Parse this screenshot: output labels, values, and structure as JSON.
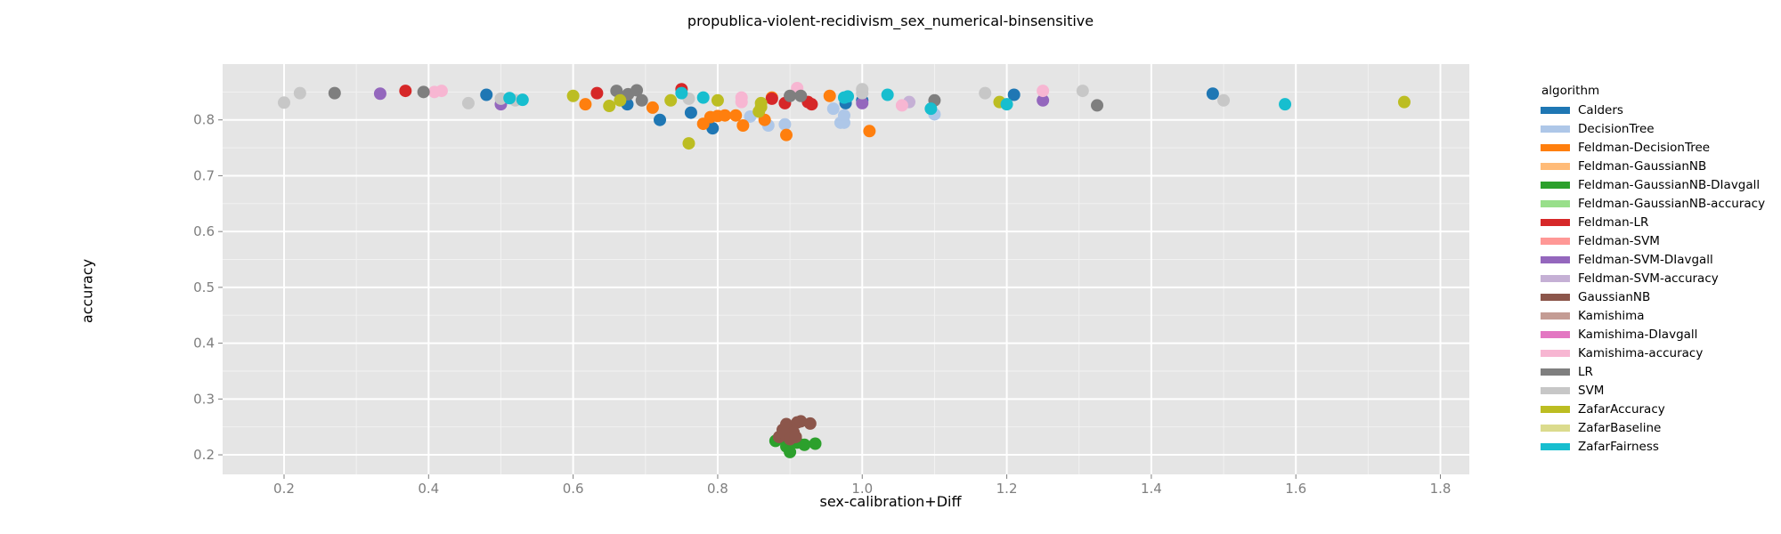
{
  "chart_data": {
    "type": "scatter",
    "title": "propublica-violent-recidivism_sex_numerical-binsensitive",
    "xlabel": "sex-calibration+Diff",
    "ylabel": "accuracy",
    "xlim": [
      0.115,
      1.84
    ],
    "ylim": [
      0.165,
      0.9
    ],
    "xticks": [
      0.2,
      0.4,
      0.6,
      0.8,
      1.0,
      1.2,
      1.4,
      1.6,
      1.8
    ],
    "xtick_labels": [
      "0.2",
      "0.4",
      "0.6",
      "0.8",
      "1.0",
      "1.2",
      "1.4",
      "1.6",
      "1.8"
    ],
    "yticks": [
      0.2,
      0.3,
      0.4,
      0.5,
      0.6,
      0.7,
      0.8
    ],
    "ytick_labels": [
      "0.2",
      "0.3",
      "0.4",
      "0.5",
      "0.6",
      "0.7",
      "0.8"
    ],
    "grid": true,
    "legend_title": "algorithm",
    "legend_position": "right",
    "series": [
      {
        "name": "Calders",
        "color": "#1f77b4",
        "points": [
          [
            0.48,
            0.845
          ],
          [
            0.72,
            0.8
          ],
          [
            0.763,
            0.813
          ],
          [
            0.793,
            0.785
          ],
          [
            0.977,
            0.83
          ],
          [
            1.0,
            0.835
          ],
          [
            1.21,
            0.845
          ],
          [
            1.485,
            0.847
          ],
          [
            0.675,
            0.828
          ]
        ]
      },
      {
        "name": "DecisionTree",
        "color": "#aec7e8",
        "points": [
          [
            0.845,
            0.806
          ],
          [
            0.87,
            0.79
          ],
          [
            0.893,
            0.792
          ],
          [
            0.96,
            0.82
          ],
          [
            0.97,
            0.795
          ],
          [
            0.975,
            0.795
          ],
          [
            1.1,
            0.81
          ],
          [
            0.975,
            0.808
          ]
        ]
      },
      {
        "name": "Feldman-DecisionTree",
        "color": "#ff7f0e",
        "points": [
          [
            0.617,
            0.828
          ],
          [
            0.71,
            0.822
          ],
          [
            0.78,
            0.793
          ],
          [
            0.79,
            0.805
          ],
          [
            0.8,
            0.807
          ],
          [
            0.81,
            0.808
          ],
          [
            0.825,
            0.808
          ],
          [
            0.835,
            0.79
          ],
          [
            0.865,
            0.8
          ],
          [
            0.895,
            0.773
          ],
          [
            1.01,
            0.78
          ],
          [
            0.955,
            0.843
          ],
          [
            0.875,
            0.84
          ]
        ]
      },
      {
        "name": "Feldman-GaussianNB",
        "color": "#ffbb78",
        "points": []
      },
      {
        "name": "Feldman-GaussianNB-DIavgall",
        "color": "#2ca02c",
        "points": [
          [
            0.88,
            0.225
          ],
          [
            0.895,
            0.215
          ],
          [
            0.9,
            0.205
          ],
          [
            0.91,
            0.222
          ],
          [
            0.92,
            0.218
          ],
          [
            0.935,
            0.22
          ],
          [
            0.89,
            0.23
          ]
        ]
      },
      {
        "name": "Feldman-GaussianNB-accuracy",
        "color": "#98df8a",
        "points": []
      },
      {
        "name": "Feldman-LR",
        "color": "#d62728",
        "points": [
          [
            0.368,
            0.852
          ],
          [
            0.633,
            0.848
          ],
          [
            0.75,
            0.855
          ],
          [
            0.875,
            0.838
          ],
          [
            0.893,
            0.83
          ],
          [
            0.925,
            0.832
          ],
          [
            0.93,
            0.828
          ]
        ]
      },
      {
        "name": "Feldman-SVM",
        "color": "#ff9896",
        "points": []
      },
      {
        "name": "Feldman-SVM-DIavgall",
        "color": "#9467bd",
        "points": [
          [
            0.333,
            0.847
          ],
          [
            0.5,
            0.828
          ],
          [
            1.0,
            0.83
          ],
          [
            1.25,
            0.835
          ]
        ]
      },
      {
        "name": "Feldman-SVM-accuracy",
        "color": "#c5b0d5",
        "points": [
          [
            1.065,
            0.832
          ]
        ]
      },
      {
        "name": "GaussianNB",
        "color": "#8c564b",
        "points": [
          [
            0.885,
            0.232
          ],
          [
            0.89,
            0.245
          ],
          [
            0.895,
            0.255
          ],
          [
            0.9,
            0.248
          ],
          [
            0.905,
            0.24
          ],
          [
            0.91,
            0.258
          ],
          [
            0.915,
            0.26
          ],
          [
            0.928,
            0.256
          ],
          [
            0.893,
            0.238
          ],
          [
            0.9,
            0.228
          ],
          [
            0.908,
            0.232
          ]
        ]
      },
      {
        "name": "Kamishima",
        "color": "#c49c94",
        "points": []
      },
      {
        "name": "Kamishima-DIavgall",
        "color": "#e377c2",
        "points": []
      },
      {
        "name": "Kamishima-accuracy",
        "color": "#f7b6d2",
        "points": [
          [
            0.408,
            0.85
          ],
          [
            0.418,
            0.852
          ],
          [
            0.833,
            0.84
          ],
          [
            0.833,
            0.832
          ],
          [
            0.91,
            0.857
          ],
          [
            1.055,
            0.826
          ],
          [
            1.25,
            0.852
          ]
        ]
      },
      {
        "name": "LR",
        "color": "#7f7f7f",
        "points": [
          [
            0.27,
            0.848
          ],
          [
            0.393,
            0.85
          ],
          [
            0.66,
            0.852
          ],
          [
            0.676,
            0.846
          ],
          [
            0.688,
            0.853
          ],
          [
            0.695,
            0.835
          ],
          [
            0.9,
            0.843
          ],
          [
            0.915,
            0.843
          ],
          [
            1.1,
            0.835
          ],
          [
            1.325,
            0.826
          ]
        ]
      },
      {
        "name": "SVM",
        "color": "#c7c7c7",
        "points": [
          [
            0.2,
            0.831
          ],
          [
            0.222,
            0.848
          ],
          [
            0.455,
            0.83
          ],
          [
            0.5,
            0.838
          ],
          [
            0.52,
            0.835
          ],
          [
            0.76,
            0.838
          ],
          [
            1.0,
            0.855
          ],
          [
            1.0,
            0.848
          ],
          [
            1.17,
            0.848
          ],
          [
            1.305,
            0.852
          ],
          [
            1.5,
            0.835
          ]
        ]
      },
      {
        "name": "ZafarAccuracy",
        "color": "#bcbd22",
        "points": [
          [
            0.6,
            0.843
          ],
          [
            0.65,
            0.825
          ],
          [
            0.665,
            0.835
          ],
          [
            0.735,
            0.835
          ],
          [
            0.76,
            0.758
          ],
          [
            0.8,
            0.835
          ],
          [
            0.86,
            0.823
          ],
          [
            0.86,
            0.83
          ],
          [
            0.857,
            0.815
          ],
          [
            1.19,
            0.832
          ],
          [
            1.75,
            0.832
          ]
        ]
      },
      {
        "name": "ZafarBaseline",
        "color": "#dbdb8d",
        "points": []
      },
      {
        "name": "ZafarFairness",
        "color": "#17becf",
        "points": [
          [
            0.512,
            0.839
          ],
          [
            0.53,
            0.836
          ],
          [
            0.75,
            0.848
          ],
          [
            0.78,
            0.84
          ],
          [
            0.975,
            0.84
          ],
          [
            0.98,
            0.842
          ],
          [
            1.035,
            0.845
          ],
          [
            1.095,
            0.82
          ],
          [
            1.2,
            0.828
          ],
          [
            1.585,
            0.828
          ]
        ]
      }
    ]
  }
}
